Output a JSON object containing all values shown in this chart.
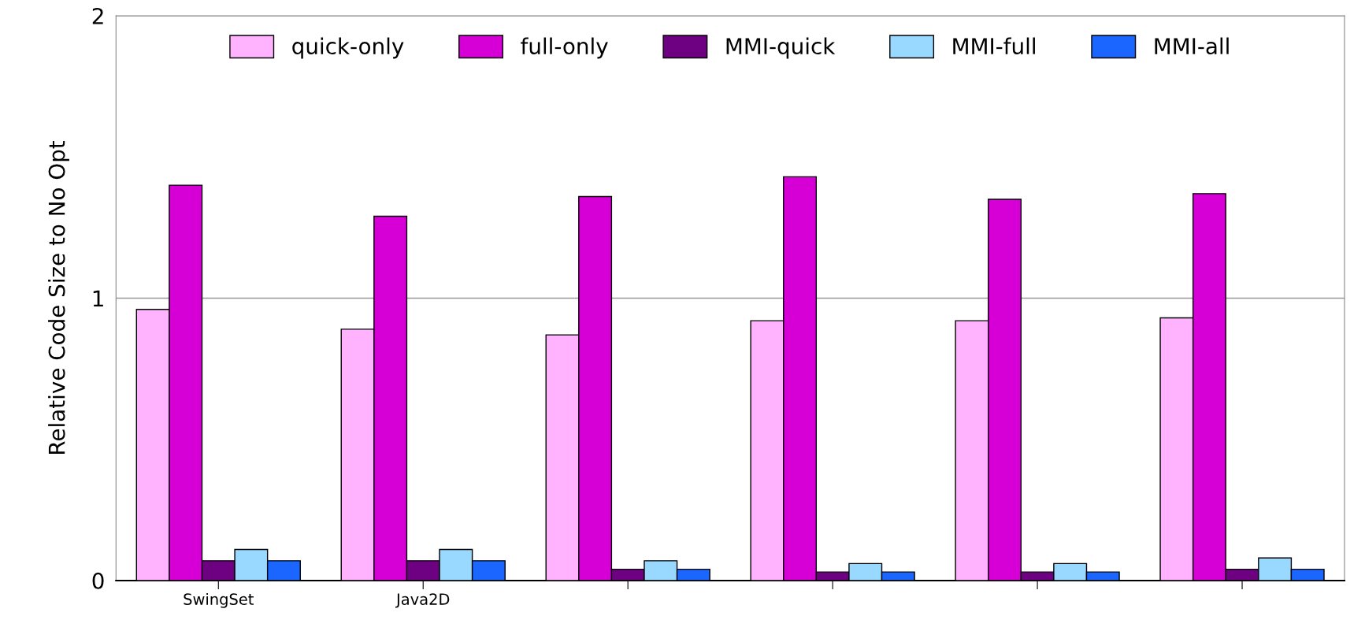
{
  "chart_data": {
    "type": "bar",
    "ylabel": "Relative Code Size to No Opt",
    "categories": [
      "SwingSet",
      "Java2D",
      null,
      null,
      null,
      null
    ],
    "series": [
      {
        "name": "quick-only",
        "color": "#ffb3ff",
        "values": [
          0.96,
          0.89,
          0.87,
          0.92,
          0.92,
          0.93
        ]
      },
      {
        "name": "full-only",
        "color": "#d600d6",
        "values": [
          1.4,
          1.29,
          1.36,
          1.43,
          1.35,
          1.37
        ]
      },
      {
        "name": "MMI-quick",
        "color": "#6e0082",
        "values": [
          0.07,
          0.07,
          0.04,
          0.03,
          0.03,
          0.04
        ]
      },
      {
        "name": "MMI-full",
        "color": "#99d8ff",
        "values": [
          0.11,
          0.11,
          0.07,
          0.06,
          0.06,
          0.08
        ]
      },
      {
        "name": "MMI-all",
        "color": "#1a66ff",
        "values": [
          0.07,
          0.07,
          0.04,
          0.03,
          0.03,
          0.04
        ]
      }
    ],
    "ylim": [
      0,
      2
    ],
    "yticks": [
      0,
      1,
      2
    ],
    "grid": "y",
    "legend": "top"
  }
}
